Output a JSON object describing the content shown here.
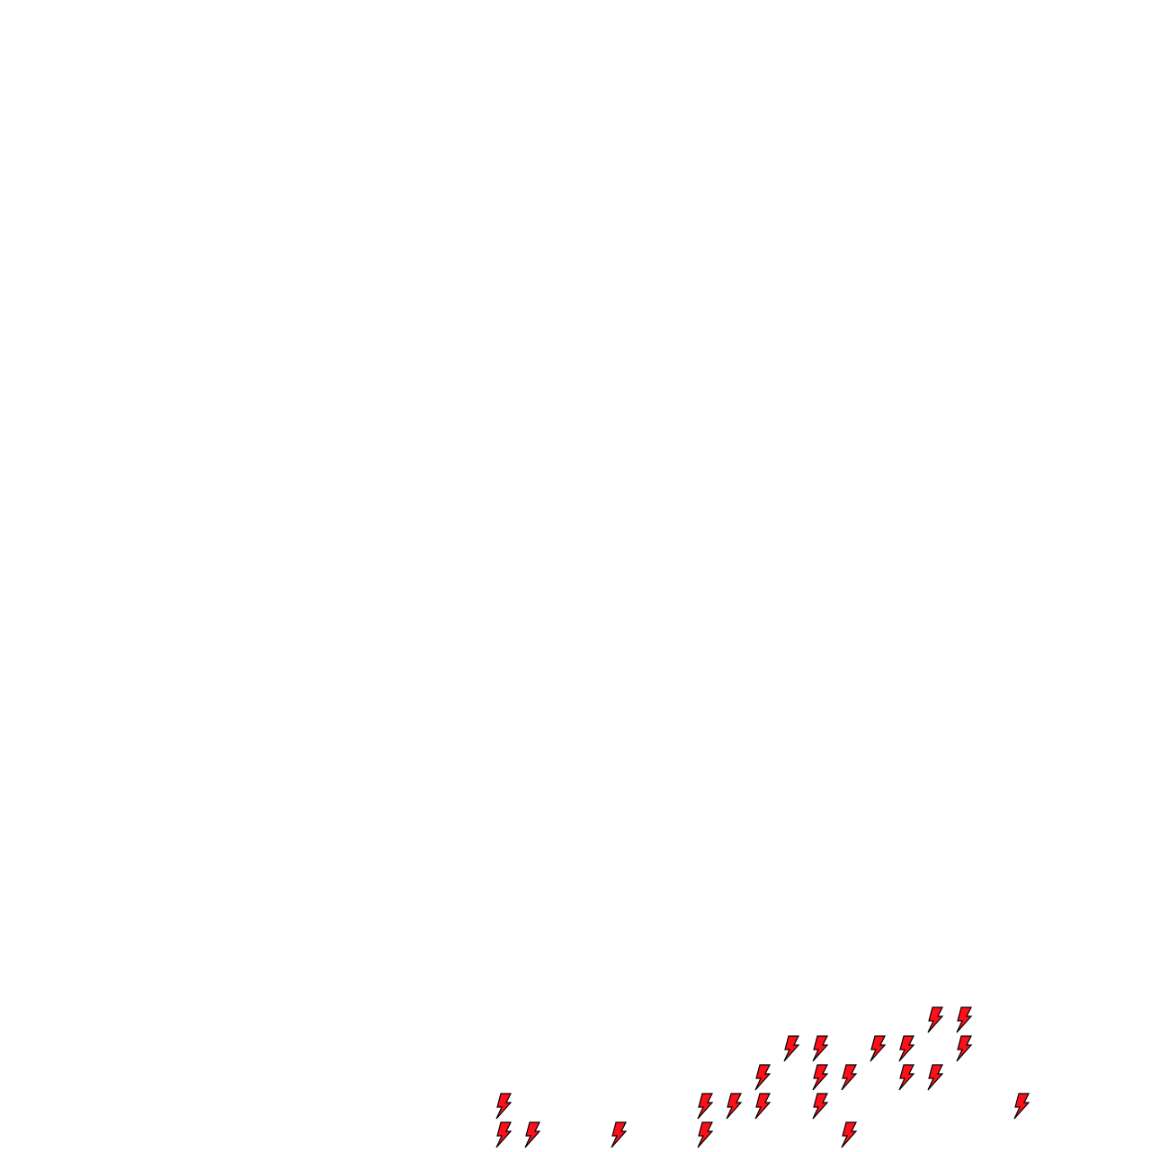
{
  "board": {
    "tile_icon": "lightning-bolt-icon",
    "tile_color": "#ff0f1a",
    "outline_color": "#000000",
    "background": "#ffffff",
    "tile_count": 23
  }
}
